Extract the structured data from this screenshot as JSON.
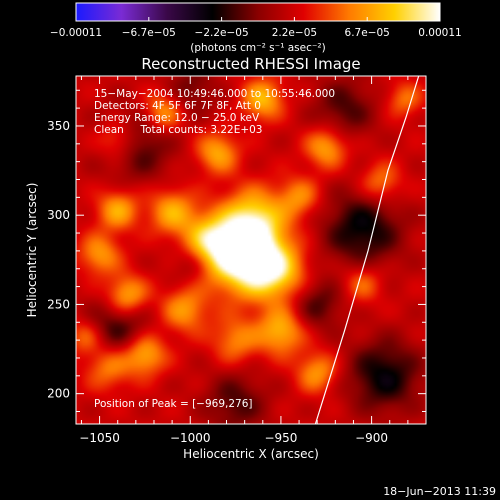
{
  "chart_data": {
    "type": "heatmap",
    "title": "Reconstructed RHESSI Image",
    "xlabel": "Heliocentric X (arcsec)",
    "ylabel": "Heliocentric Y (arcsec)",
    "xlim": [
      -1063,
      -870
    ],
    "ylim": [
      183,
      378
    ],
    "xticks": [
      {
        "value": -1050,
        "label": "−1050"
      },
      {
        "value": -1000,
        "label": "−1000"
      },
      {
        "value": -950,
        "label": "−950"
      },
      {
        "value": -900,
        "label": "−900"
      }
    ],
    "yticks": [
      {
        "value": 200,
        "label": "200"
      },
      {
        "value": 250,
        "label": "250"
      },
      {
        "value": 300,
        "label": "300"
      },
      {
        "value": 350,
        "label": "350"
      }
    ],
    "colorbar": {
      "range": [
        -0.00011,
        0.00011
      ],
      "tick_labels": [
        "−0.00011",
        "−6.7e−05",
        "−2.2e−05",
        "2.2e−05",
        "6.7e−05",
        "0.00011"
      ],
      "units": "(photons cm⁻² s⁻¹ asec⁻²)",
      "colormap": [
        "#1a1aff",
        "#7a2bd4",
        "#3a0848",
        "#000000",
        "#8a0000",
        "#e00000",
        "#ff7a00",
        "#ffd000",
        "#ffffff"
      ]
    },
    "annotations": [
      "15−May−2004 10:49:46.000 to 10:55:46.000",
      "Detectors: 4F 5F 6F 7F 8F, Att 0",
      "Energy Range: 12.0 − 25.0 keV",
      "Clean     Total counts: 3.22E+03"
    ],
    "peak_label": "Position of Peak = [−969,276]",
    "peak": {
      "x": -969,
      "y": 276
    },
    "limb_curve": [
      [
        -931,
        183
      ],
      [
        -915,
        235
      ],
      [
        -902,
        280
      ],
      [
        -891,
        325
      ],
      [
        -881,
        355
      ],
      [
        -874,
        378
      ]
    ],
    "sources": [
      {
        "x": -970,
        "y": 277,
        "amp": 1.0,
        "w": 14
      },
      {
        "x": -965,
        "y": 298,
        "amp": 0.55,
        "w": 12
      },
      {
        "x": -990,
        "y": 286,
        "amp": 0.5,
        "w": 10
      },
      {
        "x": -952,
        "y": 268,
        "amp": 0.5,
        "w": 11
      },
      {
        "x": -1010,
        "y": 302,
        "amp": 0.45,
        "w": 9
      },
      {
        "x": -1040,
        "y": 303,
        "amp": 0.45,
        "w": 8
      },
      {
        "x": -1050,
        "y": 278,
        "amp": 0.4,
        "w": 8
      },
      {
        "x": -1035,
        "y": 255,
        "amp": 0.5,
        "w": 8
      },
      {
        "x": -1003,
        "y": 247,
        "amp": 0.4,
        "w": 9
      },
      {
        "x": -950,
        "y": 235,
        "amp": 0.5,
        "w": 9
      },
      {
        "x": -975,
        "y": 230,
        "amp": 0.35,
        "w": 9
      },
      {
        "x": -1025,
        "y": 222,
        "amp": 0.5,
        "w": 8
      },
      {
        "x": -1045,
        "y": 215,
        "amp": 0.35,
        "w": 9
      },
      {
        "x": -930,
        "y": 212,
        "amp": 0.4,
        "w": 8
      },
      {
        "x": -1015,
        "y": 358,
        "amp": 0.45,
        "w": 8
      },
      {
        "x": -960,
        "y": 365,
        "amp": 0.5,
        "w": 8
      },
      {
        "x": -1040,
        "y": 342,
        "amp": 0.4,
        "w": 8
      },
      {
        "x": -925,
        "y": 338,
        "amp": 0.45,
        "w": 8
      },
      {
        "x": -895,
        "y": 318,
        "amp": 0.35,
        "w": 8
      },
      {
        "x": -905,
        "y": 262,
        "amp": 0.3,
        "w": 8
      },
      {
        "x": -1058,
        "y": 232,
        "amp": 0.3,
        "w": 7
      },
      {
        "x": -985,
        "y": 335,
        "amp": 0.45,
        "w": 8
      },
      {
        "x": -940,
        "y": 310,
        "amp": 0.35,
        "w": 8
      },
      {
        "x": -882,
        "y": 365,
        "amp": 0.3,
        "w": 7
      },
      {
        "x": -1030,
        "y": 340,
        "amp": -0.35,
        "w": 14
      },
      {
        "x": -905,
        "y": 292,
        "amp": -0.45,
        "w": 15
      },
      {
        "x": -1040,
        "y": 237,
        "amp": -0.35,
        "w": 12
      },
      {
        "x": -893,
        "y": 210,
        "amp": -0.45,
        "w": 14
      },
      {
        "x": -975,
        "y": 195,
        "amp": -0.3,
        "w": 12
      },
      {
        "x": -1000,
        "y": 370,
        "amp": -0.25,
        "w": 10
      },
      {
        "x": -915,
        "y": 360,
        "amp": -0.3,
        "w": 12
      },
      {
        "x": -1000,
        "y": 273,
        "amp": -0.2,
        "w": 8
      },
      {
        "x": -930,
        "y": 250,
        "amp": -0.3,
        "w": 10
      }
    ]
  },
  "footer": {
    "date": "18−Jun−2013 11:39"
  }
}
